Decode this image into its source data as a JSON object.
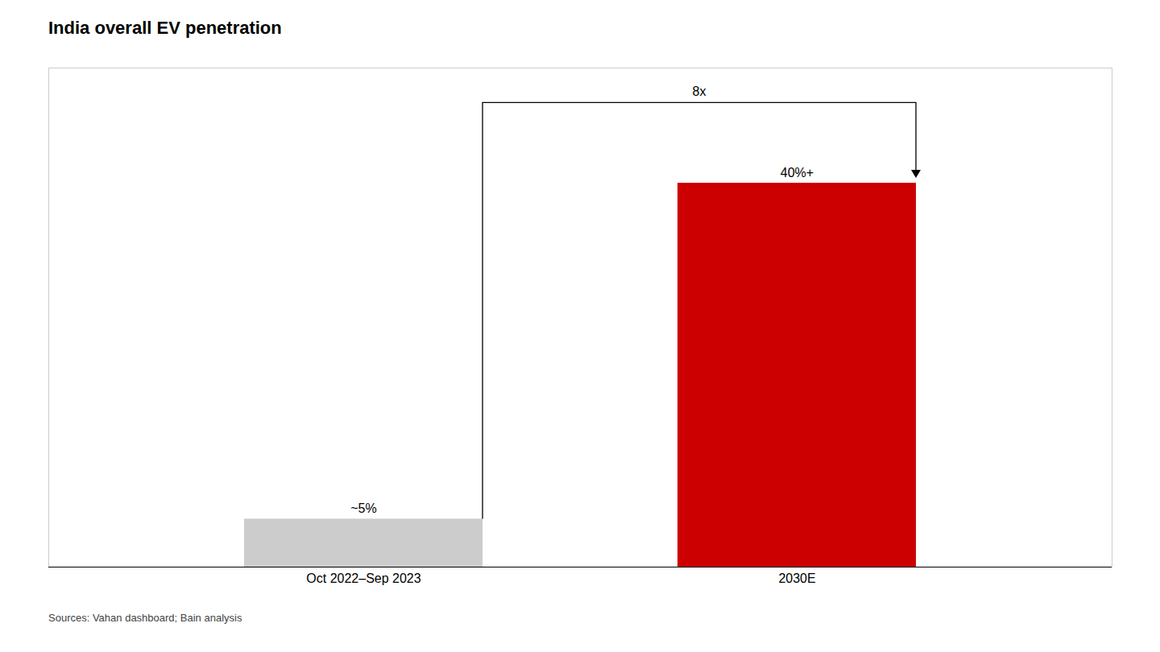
{
  "chart_data": {
    "type": "bar",
    "title": "India overall EV penetration",
    "categories": [
      "Oct 2022–Sep 2023",
      "2030E"
    ],
    "values": [
      5,
      40
    ],
    "value_labels": [
      "~5%",
      "40%+"
    ],
    "data_labels": true,
    "colors": [
      "#cccccc",
      "#cc0000"
    ],
    "ylim": [
      0,
      52
    ],
    "grid": false,
    "tick_labels": "x",
    "annotations": [
      "8x"
    ],
    "caption": "Sources: Vahan dashboard; Bain analysis"
  }
}
